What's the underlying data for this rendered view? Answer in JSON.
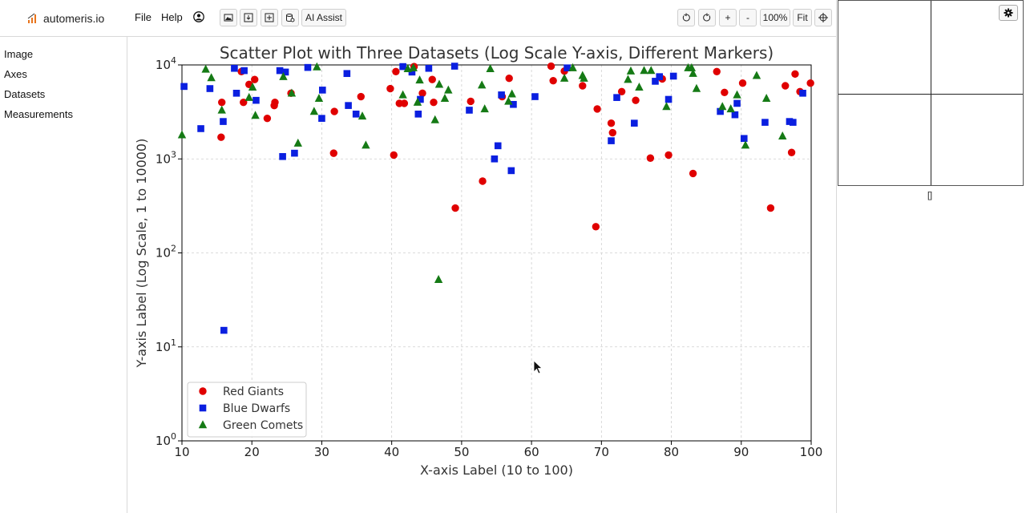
{
  "app": {
    "name": "automeris.io"
  },
  "menu": {
    "file": "File",
    "help": "Help"
  },
  "toolbar": {
    "ai_assist": "AI Assist",
    "zoom_in": "+",
    "zoom_out": "-",
    "zoom_level": "100%",
    "fit": "Fit"
  },
  "icons": {
    "logo": "bar-chart-icon",
    "user": "user-icon",
    "image": "image-icon",
    "save": "download-icon",
    "add": "add-icon",
    "database": "database-icon",
    "undo": "undo-icon",
    "redo": "redo-icon",
    "crosshair": "crosshair-icon",
    "settings": "gear-icon"
  },
  "colors": {
    "accent_orange": "#e8741c",
    "red": "#e00000",
    "blue": "#0a1fe0",
    "green": "#157a15"
  },
  "sidebar": {
    "items": [
      {
        "label": "Image"
      },
      {
        "label": "Axes"
      },
      {
        "label": "Datasets"
      },
      {
        "label": "Measurements"
      }
    ]
  },
  "magnifier": {
    "coords": "[]"
  },
  "chart_data": {
    "type": "scatter",
    "title": "Scatter Plot with Three Datasets (Log Scale Y-axis, Different Markers)",
    "xlabel": "X-axis Label (10 to 100)",
    "ylabel": "Y-axis Label (Log Scale, 1 to 10000)",
    "xlim": [
      10,
      100
    ],
    "ylim": [
      1,
      10000
    ],
    "yscale": "log",
    "grid": true,
    "legend_position": "lower-left",
    "x_ticks": [
      "10",
      "20",
      "30",
      "40",
      "50",
      "60",
      "70",
      "80",
      "90",
      "100"
    ],
    "y_ticks": [
      {
        "value": 1,
        "base": "10",
        "exp": "0"
      },
      {
        "value": 10,
        "base": "10",
        "exp": "1"
      },
      {
        "value": 100,
        "base": "10",
        "exp": "2"
      },
      {
        "value": 1000,
        "base": "10",
        "exp": "3"
      },
      {
        "value": 10000,
        "base": "10",
        "exp": "4"
      }
    ],
    "series": [
      {
        "name": "Red Giants",
        "marker": "circle",
        "color": "#e00000",
        "points": [
          [
            15.6,
            1700
          ],
          [
            15.7,
            4000
          ],
          [
            18.5,
            8500
          ],
          [
            18.8,
            4000
          ],
          [
            19.6,
            6200
          ],
          [
            20.4,
            7000
          ],
          [
            22.2,
            2700
          ],
          [
            23.2,
            3700
          ],
          [
            23.3,
            4000
          ],
          [
            25.6,
            5000
          ],
          [
            31.7,
            1150
          ],
          [
            31.8,
            3200
          ],
          [
            35.6,
            4600
          ],
          [
            39.8,
            5600
          ],
          [
            40.3,
            1100
          ],
          [
            40.6,
            8500
          ],
          [
            41.1,
            3900
          ],
          [
            41.8,
            3900
          ],
          [
            43.2,
            9600
          ],
          [
            44.4,
            5000
          ],
          [
            45.8,
            7000
          ],
          [
            46.0,
            4000
          ],
          [
            49.1,
            300
          ],
          [
            51.3,
            4100
          ],
          [
            53.0,
            580
          ],
          [
            55.8,
            4600
          ],
          [
            56.8,
            7200
          ],
          [
            62.8,
            9700
          ],
          [
            63.1,
            6800
          ],
          [
            64.7,
            8600
          ],
          [
            67.3,
            6000
          ],
          [
            69.2,
            190
          ],
          [
            69.4,
            3400
          ],
          [
            71.4,
            2400
          ],
          [
            71.6,
            1900
          ],
          [
            72.9,
            5200
          ],
          [
            74.9,
            4200
          ],
          [
            77.0,
            1020
          ],
          [
            78.7,
            7100
          ],
          [
            79.6,
            1100
          ],
          [
            83.1,
            700
          ],
          [
            86.5,
            8500
          ],
          [
            87.6,
            5100
          ],
          [
            90.2,
            6400
          ],
          [
            94.2,
            300
          ],
          [
            96.3,
            6000
          ],
          [
            97.2,
            1170
          ],
          [
            97.7,
            8000
          ],
          [
            98.4,
            5200
          ],
          [
            99.9,
            6400
          ]
        ]
      },
      {
        "name": "Blue Dwarfs",
        "marker": "square",
        "color": "#0a1fe0",
        "points": [
          [
            10.3,
            5900
          ],
          [
            12.7,
            2100
          ],
          [
            14.0,
            5600
          ],
          [
            15.9,
            2500
          ],
          [
            16.0,
            15
          ],
          [
            17.5,
            9200
          ],
          [
            17.8,
            5000
          ],
          [
            18.9,
            8700
          ],
          [
            20.6,
            4200
          ],
          [
            24.0,
            8700
          ],
          [
            24.4,
            1060
          ],
          [
            24.8,
            8400
          ],
          [
            26.1,
            1150
          ],
          [
            28.0,
            9400
          ],
          [
            30.0,
            2700
          ],
          [
            30.1,
            5400
          ],
          [
            33.6,
            8100
          ],
          [
            33.8,
            3700
          ],
          [
            34.9,
            3000
          ],
          [
            41.6,
            9600
          ],
          [
            42.9,
            8400
          ],
          [
            43.8,
            3000
          ],
          [
            44.1,
            4300
          ],
          [
            45.3,
            9200
          ],
          [
            49.0,
            9700
          ],
          [
            51.1,
            3300
          ],
          [
            54.7,
            1000
          ],
          [
            55.2,
            1380
          ],
          [
            55.7,
            4800
          ],
          [
            57.1,
            750
          ],
          [
            57.4,
            3800
          ],
          [
            60.5,
            4600
          ],
          [
            65.1,
            9300
          ],
          [
            71.4,
            1560
          ],
          [
            72.2,
            4500
          ],
          [
            74.7,
            2400
          ],
          [
            77.7,
            6700
          ],
          [
            78.3,
            7500
          ],
          [
            79.6,
            4300
          ],
          [
            80.3,
            7600
          ],
          [
            87.0,
            3200
          ],
          [
            89.1,
            2950
          ],
          [
            89.4,
            3900
          ],
          [
            90.4,
            1650
          ],
          [
            93.4,
            2450
          ],
          [
            96.9,
            2500
          ],
          [
            97.4,
            2450
          ],
          [
            98.8,
            5000
          ]
        ]
      },
      {
        "name": "Green Comets",
        "marker": "triangle",
        "color": "#157a15",
        "points": [
          [
            10.0,
            1800
          ],
          [
            13.4,
            9000
          ],
          [
            14.2,
            7300
          ],
          [
            15.7,
            3300
          ],
          [
            19.6,
            4500
          ],
          [
            20.1,
            5800
          ],
          [
            20.5,
            2900
          ],
          [
            24.5,
            7500
          ],
          [
            25.7,
            5000
          ],
          [
            26.6,
            1470
          ],
          [
            28.9,
            3200
          ],
          [
            29.3,
            9500
          ],
          [
            29.6,
            4400
          ],
          [
            35.8,
            2850
          ],
          [
            36.3,
            1400
          ],
          [
            41.6,
            4800
          ],
          [
            42.3,
            9100
          ],
          [
            43.1,
            9300
          ],
          [
            43.7,
            4000
          ],
          [
            44.0,
            6900
          ],
          [
            46.2,
            2600
          ],
          [
            46.7,
            52
          ],
          [
            46.8,
            6200
          ],
          [
            47.6,
            4400
          ],
          [
            48.1,
            5400
          ],
          [
            52.9,
            6100
          ],
          [
            53.3,
            3400
          ],
          [
            54.1,
            9100
          ],
          [
            56.7,
            4100
          ],
          [
            57.2,
            4900
          ],
          [
            64.7,
            7200
          ],
          [
            65.9,
            9300
          ],
          [
            67.3,
            7700
          ],
          [
            67.5,
            7200
          ],
          [
            73.8,
            7000
          ],
          [
            74.2,
            8600
          ],
          [
            75.4,
            5800
          ],
          [
            76.1,
            8700
          ],
          [
            77.1,
            8700
          ],
          [
            79.3,
            3600
          ],
          [
            82.4,
            9300
          ],
          [
            82.9,
            9300
          ],
          [
            83.1,
            8100
          ],
          [
            83.6,
            5600
          ],
          [
            87.3,
            3600
          ],
          [
            88.5,
            3400
          ],
          [
            89.4,
            4800
          ],
          [
            90.6,
            1400
          ],
          [
            92.2,
            7700
          ],
          [
            93.6,
            4400
          ],
          [
            95.9,
            1750
          ]
        ]
      }
    ]
  }
}
